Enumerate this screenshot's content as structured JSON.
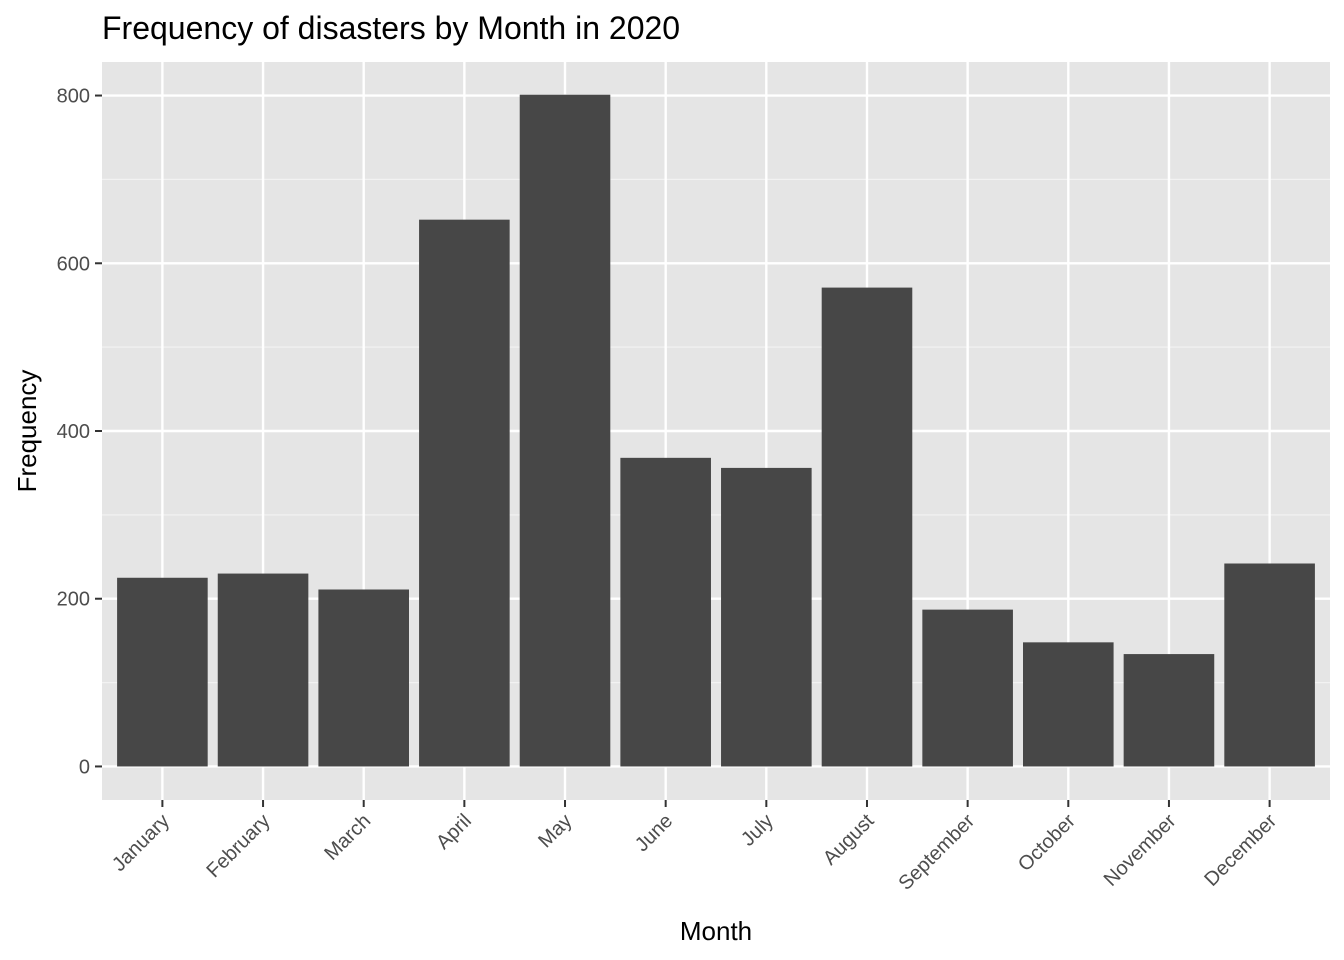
{
  "chart_data": {
    "type": "bar",
    "title": "Frequency of disasters by Month in 2020",
    "xlabel": "Month",
    "ylabel": "Frequency",
    "categories": [
      "January",
      "February",
      "March",
      "April",
      "May",
      "June",
      "July",
      "August",
      "September",
      "October",
      "November",
      "December"
    ],
    "values": [
      225,
      230,
      211,
      652,
      801,
      368,
      356,
      571,
      187,
      148,
      134,
      242
    ],
    "ylim": [
      -40,
      840
    ],
    "yticks": [
      0,
      200,
      400,
      600,
      800
    ],
    "ytick_labels": [
      "0",
      "200",
      "400",
      "600",
      "800"
    ],
    "grid": true,
    "colors": {
      "bar": "#474747",
      "panel_background": "#e5e5e5",
      "grid_major": "#ffffff",
      "grid_minor": "#f2f2f2",
      "tick_text": "#4d4d4d",
      "tick_mark": "#333333"
    }
  }
}
